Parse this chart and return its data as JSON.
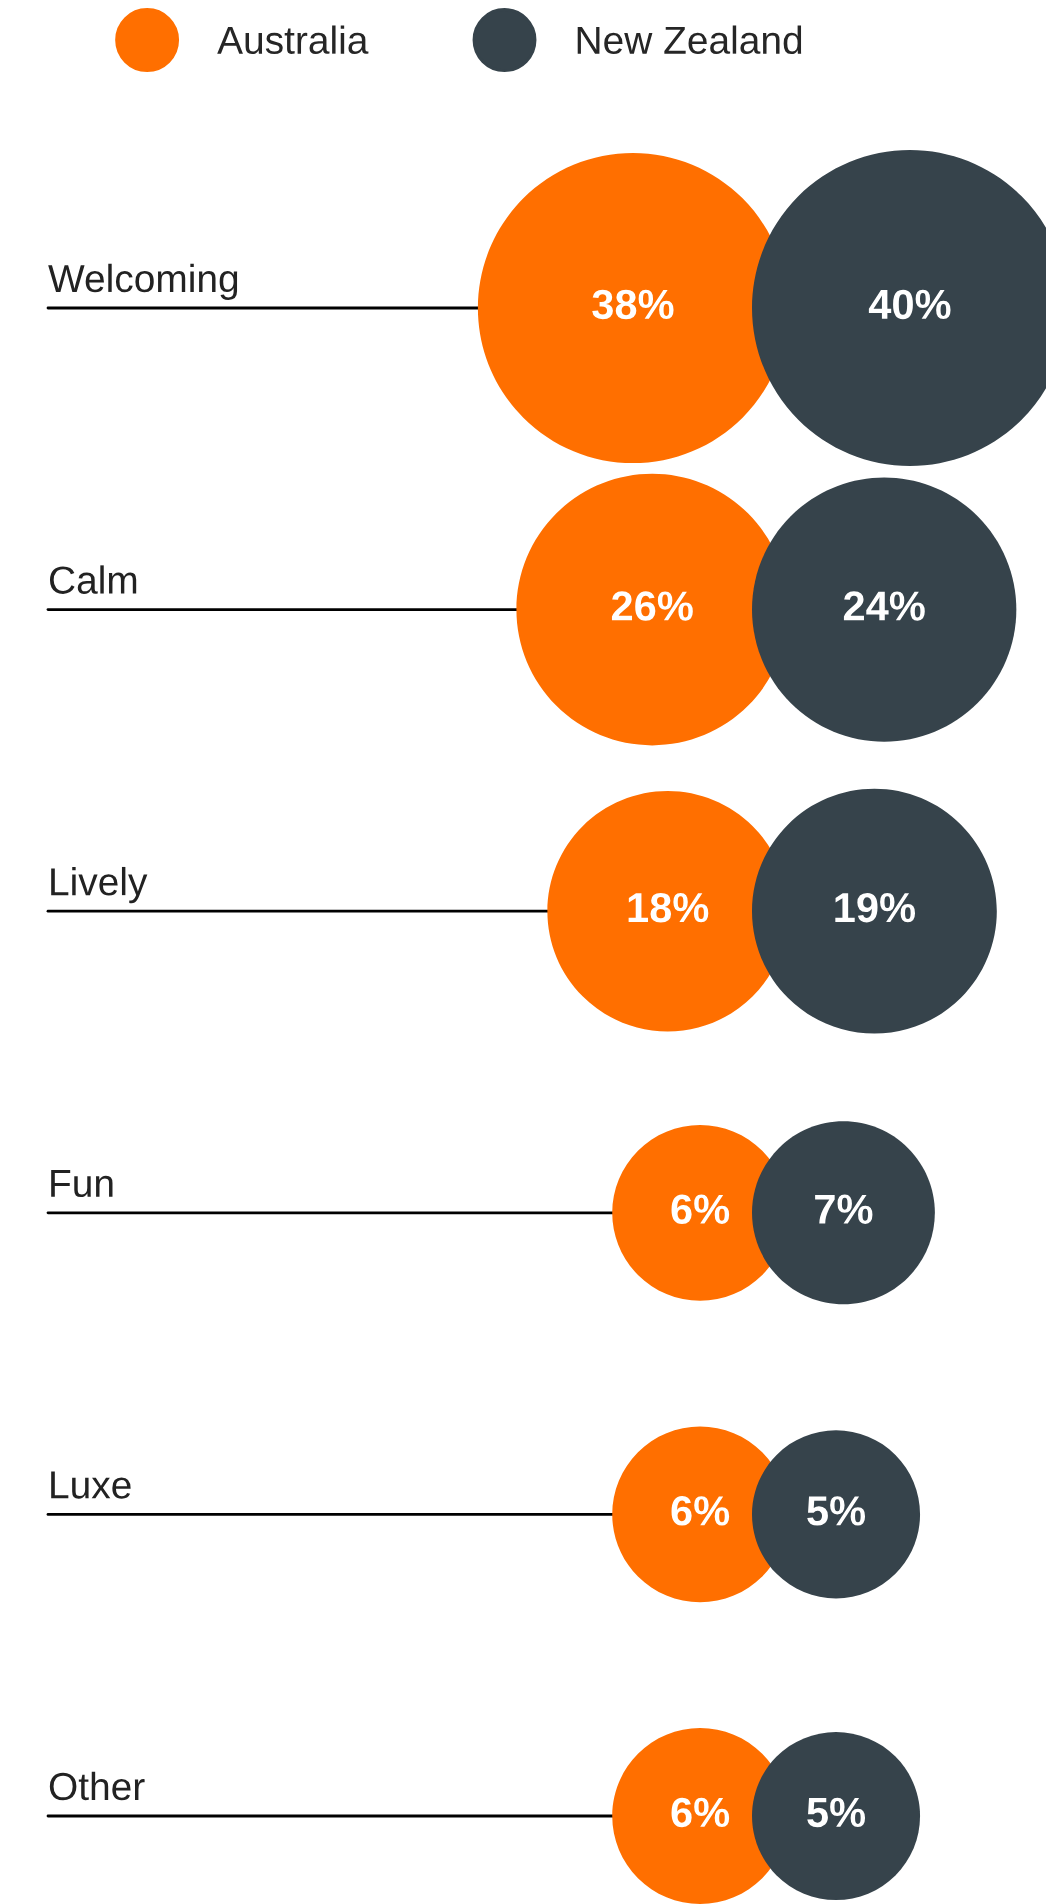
{
  "chart_data": {
    "type": "other",
    "categories": [
      "Welcoming",
      "Calm",
      "Lively",
      "Fun",
      "Luxe",
      "Other"
    ],
    "series": [
      {
        "name": "Australia",
        "color": "#ff6f00",
        "values": [
          38,
          26,
          18,
          6,
          6,
          6
        ],
        "value_labels": [
          "38%",
          "26%",
          "18%",
          "6%",
          "6%",
          "6%"
        ]
      },
      {
        "name": "New Zealand",
        "color": "#36434b",
        "values": [
          40,
          24,
          19,
          7,
          5,
          5
        ],
        "value_labels": [
          "40%",
          "24%",
          "19%",
          "7%",
          "5%",
          "5%"
        ]
      }
    ],
    "legend": "top left"
  }
}
